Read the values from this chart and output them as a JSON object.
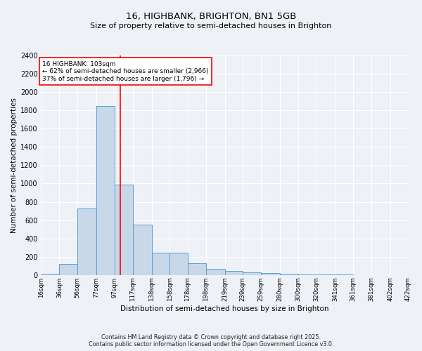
{
  "title": "16, HIGHBANK, BRIGHTON, BN1 5GB",
  "subtitle": "Size of property relative to semi-detached houses in Brighton",
  "xlabel": "Distribution of semi-detached houses by size in Brighton",
  "ylabel": "Number of semi-detached properties",
  "bar_values": [
    10,
    125,
    730,
    1850,
    985,
    550,
    245,
    245,
    130,
    70,
    45,
    30,
    25,
    15,
    5,
    5,
    5,
    2,
    1,
    1
  ],
  "bin_edges": [
    16,
    36,
    56,
    77,
    97,
    117,
    138,
    158,
    178,
    198,
    219,
    239,
    259,
    280,
    300,
    320,
    341,
    361,
    381,
    402,
    422
  ],
  "bin_labels": [
    "16sqm",
    "36sqm",
    "56sqm",
    "77sqm",
    "97sqm",
    "117sqm",
    "138sqm",
    "158sqm",
    "178sqm",
    "198sqm",
    "219sqm",
    "239sqm",
    "259sqm",
    "280sqm",
    "300sqm",
    "320sqm",
    "341sqm",
    "361sqm",
    "381sqm",
    "402sqm",
    "422sqm"
  ],
  "bar_color": "#c8d8e8",
  "bar_edge_color": "#5a9fd4",
  "red_line_x": 103,
  "ylim": [
    0,
    2400
  ],
  "yticks": [
    0,
    200,
    400,
    600,
    800,
    1000,
    1200,
    1400,
    1600,
    1800,
    2000,
    2200,
    2400
  ],
  "annotation_title": "16 HIGHBANK: 103sqm",
  "annotation_line1": "← 62% of semi-detached houses are smaller (2,966)",
  "annotation_line2": "37% of semi-detached houses are larger (1,796) →",
  "footer_line1": "Contains HM Land Registry data © Crown copyright and database right 2025.",
  "footer_line2": "Contains public sector information licensed under the Open Government Licence v3.0.",
  "background_color": "#eef2f7",
  "grid_color": "#ffffff"
}
